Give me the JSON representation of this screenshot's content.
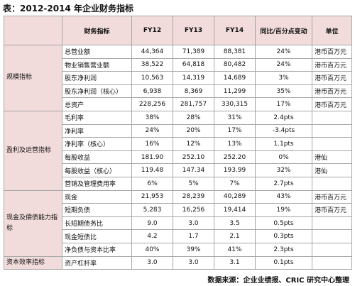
{
  "header": {
    "title": "表：2012-2014 年企业财务指标"
  },
  "table": {
    "columns": [
      "财务指标",
      "FY12",
      "FY13",
      "FY14",
      "同比/百分点变动",
      "单位"
    ],
    "groups": [
      {
        "name": "规模指标",
        "rows": [
          [
            "总营业额",
            "44,364",
            "71,389",
            "88,381",
            "24%",
            "港币百万元"
          ],
          [
            "物业销售营业额",
            "38,522",
            "64,818",
            "80,482",
            "24%",
            "港币百万元"
          ],
          [
            "股东净利润",
            "10,563",
            "14,319",
            "14,689",
            "3%",
            "港币百万元"
          ],
          [
            "股东净利润（核心）",
            "6,938",
            "8,369",
            "11,299",
            "35%",
            "港币百万元"
          ],
          [
            "总资产",
            "228,256",
            "281,757",
            "330,315",
            "17%",
            "港币百万元"
          ]
        ]
      },
      {
        "name": "盈利及运营指标",
        "rows": [
          [
            "毛利率",
            "38%",
            "28%",
            "31%",
            "2.4pts"
          ],
          [
            "净利率",
            "24%",
            "20%",
            "17%",
            "-3.4pts"
          ],
          [
            "净利率（核心）",
            "16%",
            "12%",
            "13%",
            "1.1pts"
          ],
          [
            "每股收益",
            "181.90",
            "252.10",
            "252.20",
            "0%",
            "港仙"
          ],
          [
            "每股收益（核心）",
            "119.48",
            "147.34",
            "193.99",
            "32%",
            "港仙"
          ],
          [
            "营销及管理费用率",
            "6%",
            "5%",
            "7%",
            "2.7pts"
          ]
        ]
      },
      {
        "name": "现金及偿债能力指标",
        "rows": [
          [
            "现金",
            "21,953",
            "28,239",
            "40,289",
            "43%",
            "港币百万元"
          ],
          [
            "短期负债",
            "5,283",
            "16,256",
            "19,414",
            "19%",
            "港币百万元"
          ],
          [
            "长短期债务比",
            "9.0",
            "3.0",
            "3.5",
            "0.5pts"
          ],
          [
            "现金短债比",
            "4.2",
            "1.7",
            "2.1",
            "0.3pts"
          ],
          [
            "净负债与资本比率",
            "40%",
            "39%",
            "41%",
            "2.3pts"
          ]
        ]
      },
      {
        "name": "资本效率指标",
        "rows": [
          [
            "资产杠杆率",
            "3.0",
            "3.0",
            "3.1",
            "0.1pts"
          ]
        ]
      }
    ]
  },
  "footer": {
    "source": "数据来源：企业业绩报、CRIC 研究中心整理"
  }
}
